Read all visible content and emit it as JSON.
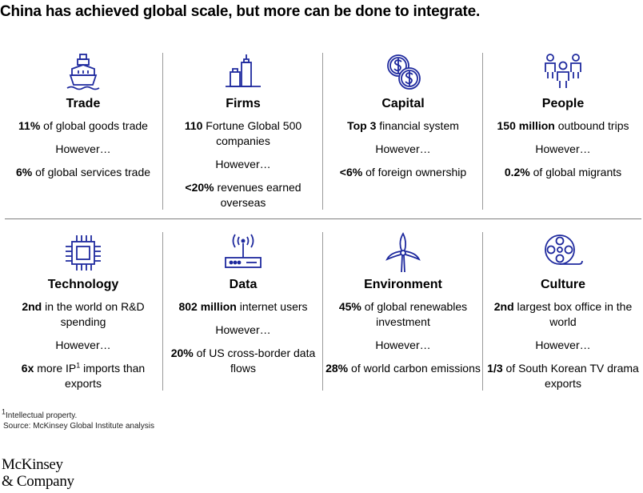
{
  "title": "China has achieved global scale, but more can be done to integrate.",
  "however_label": "However…",
  "cells": [
    {
      "icon": "ship-icon",
      "title": "Trade",
      "stat1_bold": "11%",
      "stat1_rest": " of global goods trade",
      "stat2_bold": "6%",
      "stat2_rest": " of global services trade"
    },
    {
      "icon": "buildings-icon",
      "title": "Firms",
      "stat1_bold": "110",
      "stat1_rest": " Fortune Global 500 companies",
      "stat2_bold": "<20%",
      "stat2_rest": " revenues earned overseas"
    },
    {
      "icon": "coins-icon",
      "title": "Capital",
      "stat1_bold": "Top 3",
      "stat1_rest": " financial system",
      "stat2_bold": "<6%",
      "stat2_rest": " of foreign ownership"
    },
    {
      "icon": "people-icon",
      "title": "People",
      "stat1_bold": "150 million",
      "stat1_rest": " outbound trips",
      "stat2_bold": "0.2%",
      "stat2_rest": " of global migrants"
    },
    {
      "icon": "chip-icon",
      "title": "Technology",
      "stat1_bold": "2nd",
      "stat1_rest": " in the world on R&D spending",
      "stat2_bold": "6x",
      "stat2_rest": " more IP",
      "stat2_sup": "1",
      "stat2_rest2": " imports than exports"
    },
    {
      "icon": "router-icon",
      "title": "Data",
      "stat1_bold": "802 million",
      "stat1_rest": " internet users",
      "stat2_bold": "20%",
      "stat2_rest": " of US cross-border data flows"
    },
    {
      "icon": "wind-turbine-icon",
      "title": "Environment",
      "stat1_bold": "45%",
      "stat1_rest": " of global renewables investment",
      "stat2_bold": "28%",
      "stat2_rest": " of world carbon emissions"
    },
    {
      "icon": "film-reel-icon",
      "title": "Culture",
      "stat1_bold": "2nd",
      "stat1_rest": " largest box office in the world",
      "stat2_bold": "1/3",
      "stat2_rest": " of South Korean TV drama exports"
    }
  ],
  "footnote": {
    "sup": "1",
    "note": "Intellectual property.",
    "source": "Source: McKinsey Global Institute analysis"
  },
  "logo": {
    "line1": "McKinsey",
    "line2": "& Company"
  },
  "colors": {
    "icon_stroke": "#1f2a9e",
    "text": "#000000",
    "rule": "#808080"
  }
}
